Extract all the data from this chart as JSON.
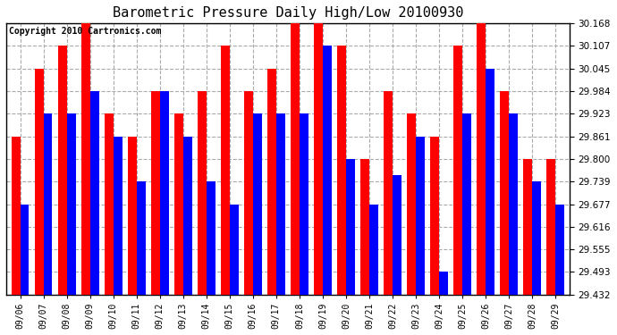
{
  "title": "Barometric Pressure Daily High/Low 20100930",
  "copyright": "Copyright 2010 Cartronics.com",
  "dates": [
    "09/06",
    "09/07",
    "09/08",
    "09/09",
    "09/10",
    "09/11",
    "09/12",
    "09/13",
    "09/14",
    "09/15",
    "09/16",
    "09/17",
    "09/18",
    "09/19",
    "09/20",
    "09/21",
    "09/22",
    "09/23",
    "09/24",
    "09/25",
    "09/26",
    "09/27",
    "09/28",
    "09/29"
  ],
  "highs": [
    29.861,
    30.045,
    30.107,
    30.168,
    29.923,
    29.861,
    29.984,
    29.923,
    29.984,
    30.107,
    29.984,
    30.045,
    30.168,
    30.23,
    30.107,
    29.8,
    29.984,
    29.923,
    29.861,
    30.107,
    30.168,
    29.984,
    29.8,
    29.8
  ],
  "lows": [
    29.677,
    29.923,
    29.923,
    29.984,
    29.861,
    29.739,
    29.984,
    29.861,
    29.739,
    29.677,
    29.923,
    29.923,
    29.923,
    30.107,
    29.8,
    29.677,
    29.755,
    29.861,
    29.493,
    29.923,
    30.045,
    29.923,
    29.739,
    29.677
  ],
  "high_color": "#ff0000",
  "low_color": "#0000ff",
  "bg_color": "#ffffff",
  "grid_color": "#aaaaaa",
  "ymin": 29.432,
  "ymax": 30.168,
  "yticks": [
    29.432,
    29.493,
    29.555,
    29.616,
    29.677,
    29.739,
    29.8,
    29.861,
    29.923,
    29.984,
    30.045,
    30.107,
    30.168
  ]
}
